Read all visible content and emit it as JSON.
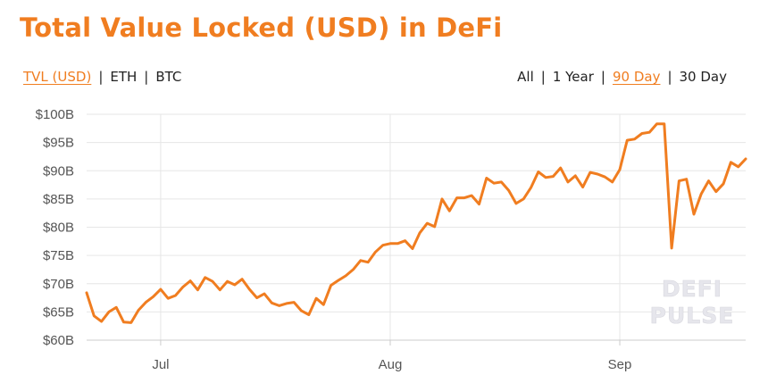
{
  "title": "Total Value Locked (USD) in DeFi",
  "currency_toggle": [
    {
      "label": "TVL (USD)",
      "active": true
    },
    {
      "label": "ETH",
      "active": false
    },
    {
      "label": "BTC",
      "active": false
    }
  ],
  "range_toggle": [
    {
      "label": "All",
      "active": false
    },
    {
      "label": "1 Year",
      "active": false
    },
    {
      "label": "90 Day",
      "active": true
    },
    {
      "label": "30 Day",
      "active": false
    }
  ],
  "separator": "|",
  "watermark": [
    "DEFI",
    "PULSE"
  ],
  "colors": {
    "accent": "#f07d20",
    "line": "#f07d20",
    "grid": "#e6e6e6"
  },
  "chart_data": {
    "type": "line",
    "title": "Total Value Locked (USD) in DeFi",
    "xlabel": "",
    "ylabel": "",
    "ylim": [
      60,
      100
    ],
    "y_unit": "billion USD",
    "y_ticks": [
      60,
      65,
      70,
      75,
      80,
      85,
      90,
      95,
      100
    ],
    "y_tick_labels": [
      "$60B",
      "$65B",
      "$70B",
      "$75B",
      "$80B",
      "$85B",
      "$90B",
      "$95B",
      "$100B"
    ],
    "x_ticks": [
      {
        "label": "Jul",
        "index": 10
      },
      {
        "label": "Aug",
        "index": 41
      },
      {
        "label": "Sep",
        "index": 72
      }
    ],
    "grid": true,
    "series": [
      {
        "values": [
          68.4,
          64.3,
          63.3,
          65.0,
          65.8,
          63.2,
          63.1,
          65.3,
          66.7,
          67.7,
          69.0,
          67.4,
          67.9,
          69.4,
          70.5,
          68.9,
          71.1,
          70.4,
          68.9,
          70.4,
          69.8,
          70.8,
          69.0,
          67.5,
          68.2,
          66.6,
          66.1,
          66.5,
          66.7,
          65.2,
          64.5,
          67.4,
          66.3,
          69.7,
          70.6,
          71.4,
          72.5,
          74.1,
          73.8,
          75.6,
          76.8,
          77.1,
          77.1,
          77.6,
          76.2,
          79.0,
          80.7,
          80.1,
          85.0,
          82.9,
          85.2,
          85.2,
          85.6,
          84.1,
          88.7,
          87.8,
          88.0,
          86.5,
          84.2,
          85.0,
          87.0,
          89.8,
          88.8,
          89.0,
          90.5,
          88.0,
          89.1,
          87.1,
          89.7,
          89.4,
          88.9,
          88.0,
          90.2,
          95.4,
          95.6,
          96.6,
          96.8,
          98.3,
          98.3,
          76.3,
          88.2,
          88.5,
          82.3,
          85.9,
          88.2,
          86.3,
          87.7,
          91.5,
          90.7,
          92.1
        ]
      }
    ]
  }
}
